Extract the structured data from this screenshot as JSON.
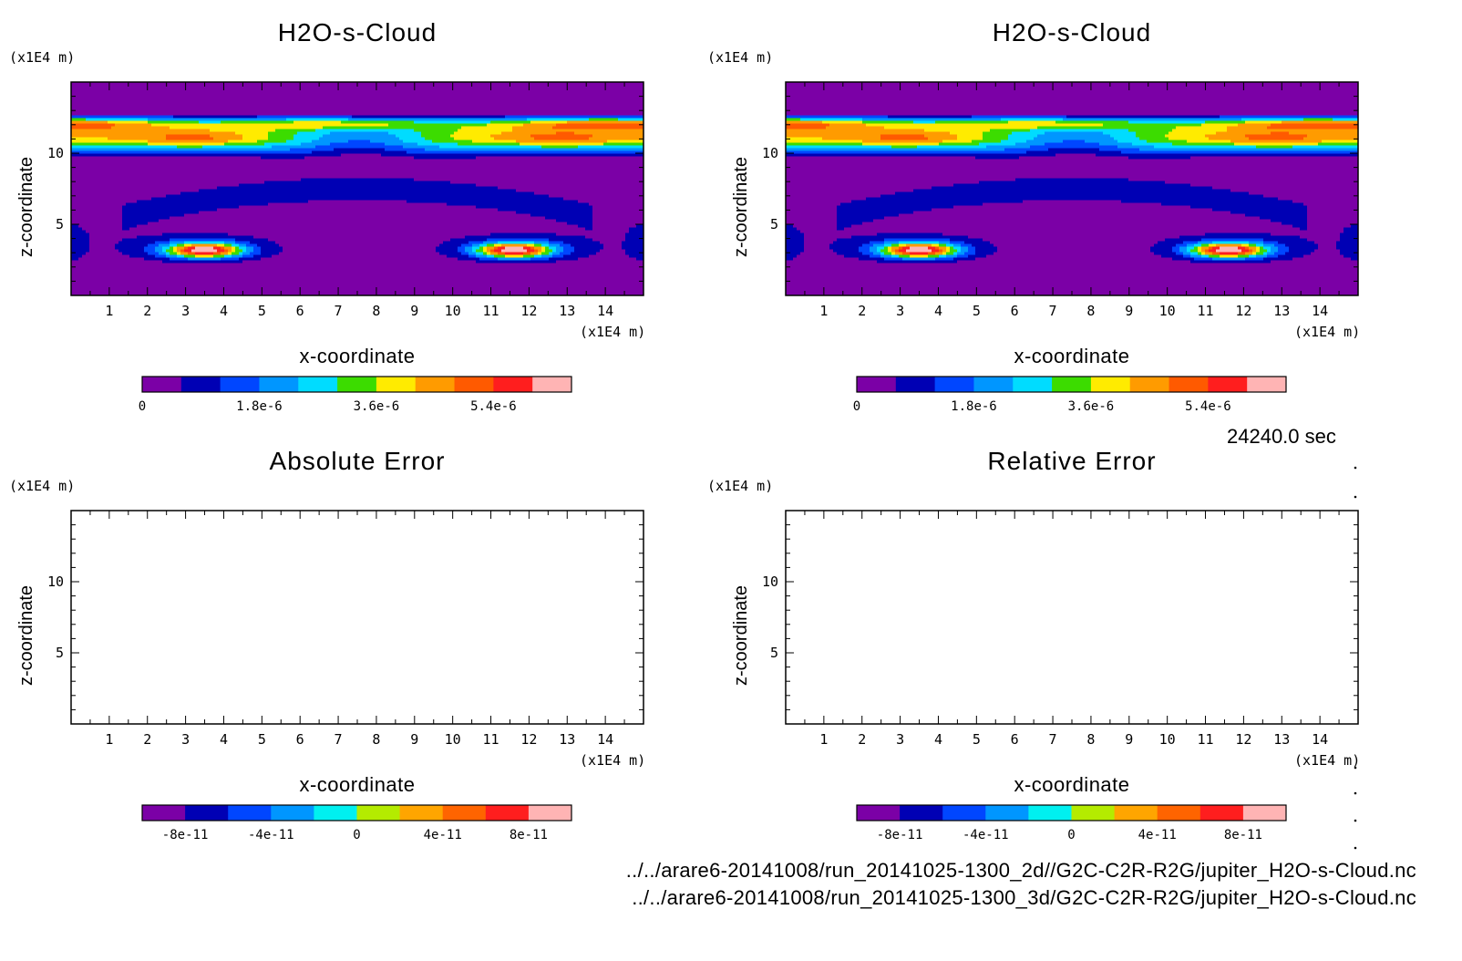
{
  "panels": [
    {
      "title": "H2O-s-Cloud",
      "y_unit": "(x1E4 m)",
      "x_unit": "(x1E4 m)",
      "xlabel": "x-coordinate",
      "ylabel": "z-coordinate"
    },
    {
      "title": "H2O-s-Cloud",
      "y_unit": "(x1E4 m)",
      "x_unit": "(x1E4 m)",
      "xlabel": "x-coordinate",
      "ylabel": "z-coordinate"
    },
    {
      "title": "Absolute Error",
      "y_unit": "(x1E4 m)",
      "x_unit": "(x1E4 m)",
      "xlabel": "x-coordinate",
      "ylabel": "z-coordinate"
    },
    {
      "title": "Relative Error",
      "y_unit": "(x1E4 m)",
      "x_unit": "(x1E4 m)",
      "xlabel": "x-coordinate",
      "ylabel": "z-coordinate"
    }
  ],
  "timestamp": "24240.0 sec",
  "files": [
    "../../arare6-20141008/run_20141025-1300_2d//G2C-C2R-R2G/jupiter_H2O-s-Cloud.nc",
    "../../arare6-20141008/run_20141025-1300_3d/G2C-C2R-R2G/jupiter_H2O-s-Cloud.nc"
  ],
  "chart_data": [
    {
      "type": "heatmap",
      "title": "H2O-s-Cloud",
      "xlabel": "x-coordinate",
      "ylabel": "z-coordinate",
      "x_unit": "(x1E4 m)",
      "y_unit": "(x1E4 m)",
      "xlim": [
        0,
        15
      ],
      "ylim": [
        0,
        15
      ],
      "x_ticks": [
        1,
        2,
        3,
        4,
        5,
        6,
        7,
        8,
        9,
        10,
        11,
        12,
        13,
        14
      ],
      "y_ticks": [
        5,
        10
      ],
      "colorbar": {
        "levels": [
          0,
          6e-07,
          1.2e-06,
          1.8e-06,
          2.4e-06,
          3e-06,
          3.6e-06,
          4.2e-06,
          4.8e-06,
          5.4e-06,
          6e-06,
          6.6e-06
        ],
        "tick_labels": [
          "0",
          "1.8e-6",
          "3.6e-6",
          "5.4e-6"
        ],
        "tick_values": [
          0,
          1.8e-06,
          3.6e-06,
          5.4e-06
        ],
        "colors": [
          "#7b00a6",
          "#0000b4",
          "#0046ff",
          "#0096ff",
          "#00dcff",
          "#3cdc00",
          "#ffeb00",
          "#ff9b00",
          "#ff5a00",
          "#ff1e1e",
          "#ffb4b4"
        ]
      }
    },
    {
      "type": "heatmap",
      "title": "H2O-s-Cloud",
      "xlabel": "x-coordinate",
      "ylabel": "z-coordinate",
      "x_unit": "(x1E4 m)",
      "y_unit": "(x1E4 m)",
      "xlim": [
        0,
        15
      ],
      "ylim": [
        0,
        15
      ],
      "x_ticks": [
        1,
        2,
        3,
        4,
        5,
        6,
        7,
        8,
        9,
        10,
        11,
        12,
        13,
        14
      ],
      "y_ticks": [
        5,
        10
      ],
      "colorbar": {
        "levels": [
          0,
          6e-07,
          1.2e-06,
          1.8e-06,
          2.4e-06,
          3e-06,
          3.6e-06,
          4.2e-06,
          4.8e-06,
          5.4e-06,
          6e-06,
          6.6e-06
        ],
        "tick_labels": [
          "0",
          "1.8e-6",
          "3.6e-6",
          "5.4e-6"
        ],
        "tick_values": [
          0,
          1.8e-06,
          3.6e-06,
          5.4e-06
        ],
        "colors": [
          "#7b00a6",
          "#0000b4",
          "#0046ff",
          "#0096ff",
          "#00dcff",
          "#3cdc00",
          "#ffeb00",
          "#ff9b00",
          "#ff5a00",
          "#ff1e1e",
          "#ffb4b4"
        ]
      }
    },
    {
      "type": "heatmap",
      "title": "Absolute Error",
      "xlabel": "x-coordinate",
      "ylabel": "z-coordinate",
      "x_unit": "(x1E4 m)",
      "y_unit": "(x1E4 m)",
      "xlim": [
        0,
        15
      ],
      "ylim": [
        0,
        15
      ],
      "x_ticks": [
        1,
        2,
        3,
        4,
        5,
        6,
        7,
        8,
        9,
        10,
        11,
        12,
        13,
        14
      ],
      "y_ticks": [
        5,
        10
      ],
      "colorbar": {
        "levels": [
          -1e-10,
          -8e-11,
          -6e-11,
          -4e-11,
          -2e-11,
          0,
          2e-11,
          4e-11,
          6e-11,
          8e-11,
          1e-10
        ],
        "tick_labels": [
          "-8e-11",
          "-4e-11",
          "0",
          "4e-11",
          "8e-11"
        ],
        "tick_values": [
          -8e-11,
          -4e-11,
          0,
          4e-11,
          8e-11
        ],
        "colors": [
          "#7b00a6",
          "#0000b4",
          "#0046ff",
          "#0096ff",
          "#00f0f0",
          "#b4eb00",
          "#ffa500",
          "#ff6400",
          "#ff1e1e",
          "#ffb4b4"
        ]
      }
    },
    {
      "type": "heatmap",
      "title": "Relative Error",
      "xlabel": "x-coordinate",
      "ylabel": "z-coordinate",
      "x_unit": "(x1E4 m)",
      "y_unit": "(x1E4 m)",
      "xlim": [
        0,
        15
      ],
      "ylim": [
        0,
        15
      ],
      "x_ticks": [
        1,
        2,
        3,
        4,
        5,
        6,
        7,
        8,
        9,
        10,
        11,
        12,
        13,
        14
      ],
      "y_ticks": [
        5,
        10
      ],
      "colorbar": {
        "levels": [
          -1e-10,
          -8e-11,
          -6e-11,
          -4e-11,
          -2e-11,
          0,
          2e-11,
          4e-11,
          6e-11,
          8e-11,
          1e-10
        ],
        "tick_labels": [
          "-8e-11",
          "-4e-11",
          "0",
          "4e-11",
          "8e-11"
        ],
        "tick_values": [
          -8e-11,
          -4e-11,
          0,
          4e-11,
          8e-11
        ],
        "colors": [
          "#7b00a6",
          "#0000b4",
          "#0046ff",
          "#0096ff",
          "#00f0f0",
          "#b4eb00",
          "#ffa500",
          "#ff6400",
          "#ff1e1e",
          "#ffb4b4"
        ]
      }
    }
  ]
}
